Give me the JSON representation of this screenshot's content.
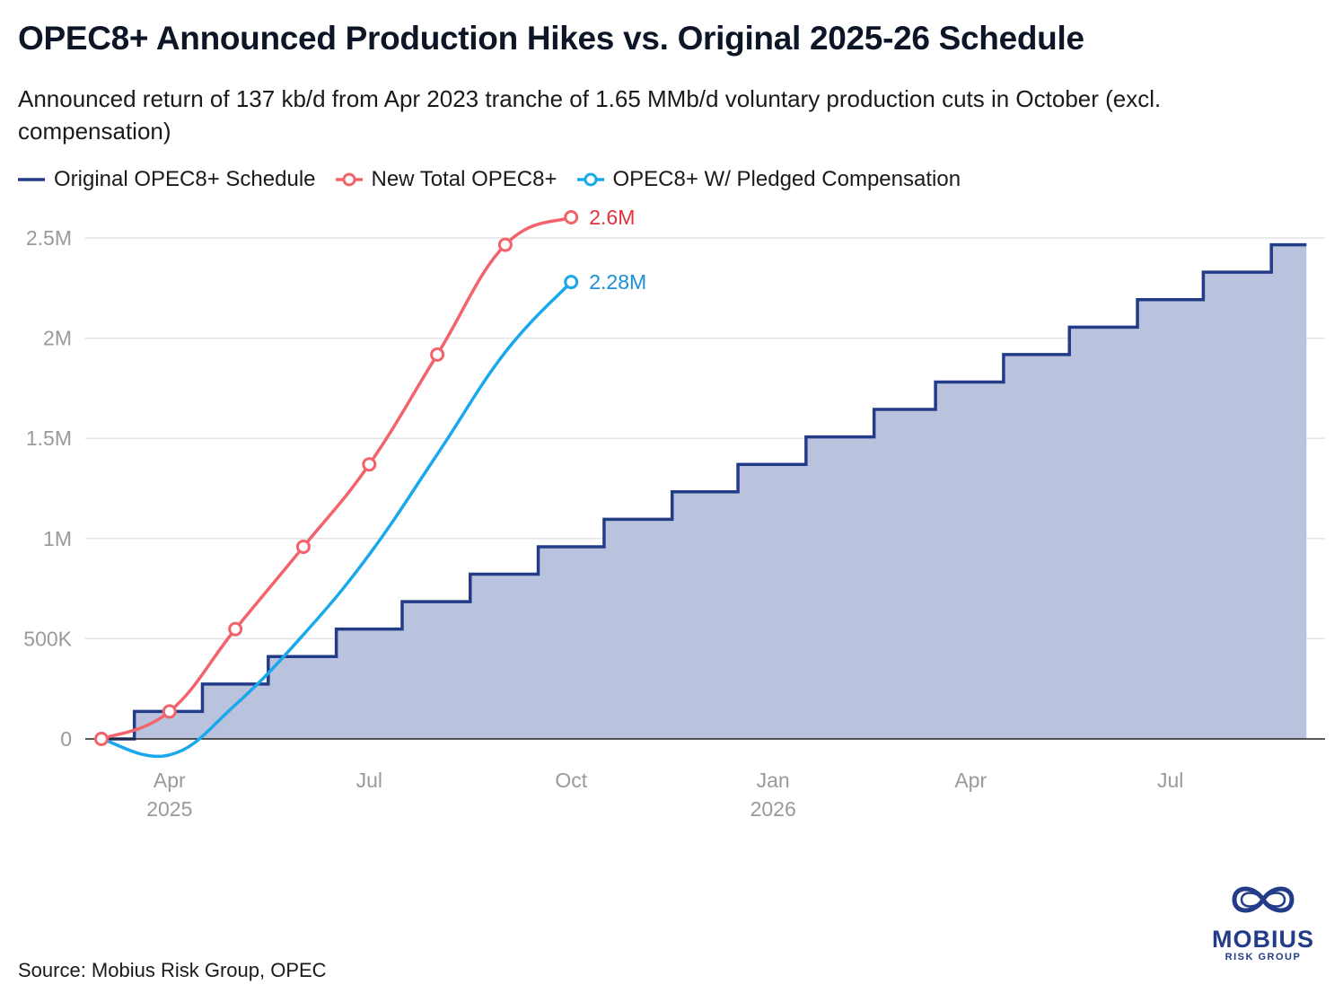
{
  "header": {
    "title": "OPEC8+ Announced Production Hikes vs. Original 2025-26 Schedule",
    "subtitle": "Announced return of 137 kb/d from Apr 2023 tranche of 1.65 MMb/d voluntary production cuts in October (excl. compensation)"
  },
  "footer": {
    "source": "Source: Mobius Risk Group, OPEC",
    "logo_name": "MOBIUS",
    "logo_sub": "RISK GROUP"
  },
  "colors": {
    "original": "#233c88",
    "original_fill": "#b9c3dd",
    "new_total": "#f2636b",
    "compensation": "#19a8ec",
    "grid": "#e3e3e3",
    "axis_text": "#9a9a9a",
    "label_red": "#e0333f",
    "label_blue": "#1c8fd6"
  },
  "chart_data": {
    "type": "line",
    "title": "OPEC8+ Announced Production Hikes vs. Original 2025-26 Schedule",
    "subtitle": "Announced return of 137 kb/d from Apr 2023 tranche of 1.65 MMb/d voluntary production cuts in October (excl. compensation)",
    "xlabel": "",
    "ylabel": "",
    "x_range": [
      "2025-03-01",
      "2026-09-01"
    ],
    "ylim": [
      0,
      2600000
    ],
    "y_ticks": [
      {
        "value": 0,
        "label": "0"
      },
      {
        "value": 500000,
        "label": "500K"
      },
      {
        "value": 1000000,
        "label": "1M"
      },
      {
        "value": 1500000,
        "label": "1.5M"
      },
      {
        "value": 2000000,
        "label": "2M"
      },
      {
        "value": 2500000,
        "label": "2.5M"
      }
    ],
    "x_ticks": [
      {
        "date": "2025-04-01",
        "label": "Apr",
        "year": "2025"
      },
      {
        "date": "2025-07-01",
        "label": "Jul",
        "year": ""
      },
      {
        "date": "2025-10-01",
        "label": "Oct",
        "year": ""
      },
      {
        "date": "2026-01-01",
        "label": "Jan",
        "year": "2026"
      },
      {
        "date": "2026-04-01",
        "label": "Apr",
        "year": ""
      },
      {
        "date": "2026-07-01",
        "label": "Jul",
        "year": ""
      }
    ],
    "grid": true,
    "legend_position": "top-left",
    "series": [
      {
        "name": "Original OPEC8+ Schedule",
        "style": "step-area",
        "end_date": "2026-09-01",
        "points": [
          {
            "x": "2025-03-01",
            "y": 0
          },
          {
            "x": "2025-03-16",
            "y": 137000
          },
          {
            "x": "2025-04-16",
            "y": 274000
          },
          {
            "x": "2025-05-16",
            "y": 411000
          },
          {
            "x": "2025-06-16",
            "y": 548000
          },
          {
            "x": "2025-07-16",
            "y": 685000
          },
          {
            "x": "2025-08-16",
            "y": 822000
          },
          {
            "x": "2025-09-16",
            "y": 959000
          },
          {
            "x": "2025-10-16",
            "y": 1096000
          },
          {
            "x": "2025-11-16",
            "y": 1233000
          },
          {
            "x": "2025-12-16",
            "y": 1370000
          },
          {
            "x": "2026-01-16",
            "y": 1507000
          },
          {
            "x": "2026-02-16",
            "y": 1644000
          },
          {
            "x": "2026-03-16",
            "y": 1781000
          },
          {
            "x": "2026-04-16",
            "y": 1918000
          },
          {
            "x": "2026-05-16",
            "y": 2055000
          },
          {
            "x": "2026-06-16",
            "y": 2192000
          },
          {
            "x": "2026-07-16",
            "y": 2329000
          },
          {
            "x": "2026-08-16",
            "y": 2466000
          }
        ]
      },
      {
        "name": "New Total OPEC8+",
        "style": "line-markers",
        "end_label": "2.6M",
        "points": [
          {
            "x": "2025-03-01",
            "y": 0
          },
          {
            "x": "2025-04-01",
            "y": 137000
          },
          {
            "x": "2025-05-01",
            "y": 548000
          },
          {
            "x": "2025-06-01",
            "y": 959000
          },
          {
            "x": "2025-07-01",
            "y": 1370000
          },
          {
            "x": "2025-08-01",
            "y": 1918000
          },
          {
            "x": "2025-09-01",
            "y": 2466000
          },
          {
            "x": "2025-10-01",
            "y": 2603000
          }
        ]
      },
      {
        "name": "OPEC8+ W/ Pledged Compensation",
        "style": "line-end-marker",
        "end_label": "2.28M",
        "points": [
          {
            "x": "2025-03-01",
            "y": 0
          },
          {
            "x": "2025-04-01",
            "y": -80000
          },
          {
            "x": "2025-05-01",
            "y": 170000
          },
          {
            "x": "2025-06-01",
            "y": 520000
          },
          {
            "x": "2025-07-01",
            "y": 920000
          },
          {
            "x": "2025-08-01",
            "y": 1420000
          },
          {
            "x": "2025-09-01",
            "y": 1930000
          },
          {
            "x": "2025-10-01",
            "y": 2280000
          }
        ]
      }
    ]
  }
}
